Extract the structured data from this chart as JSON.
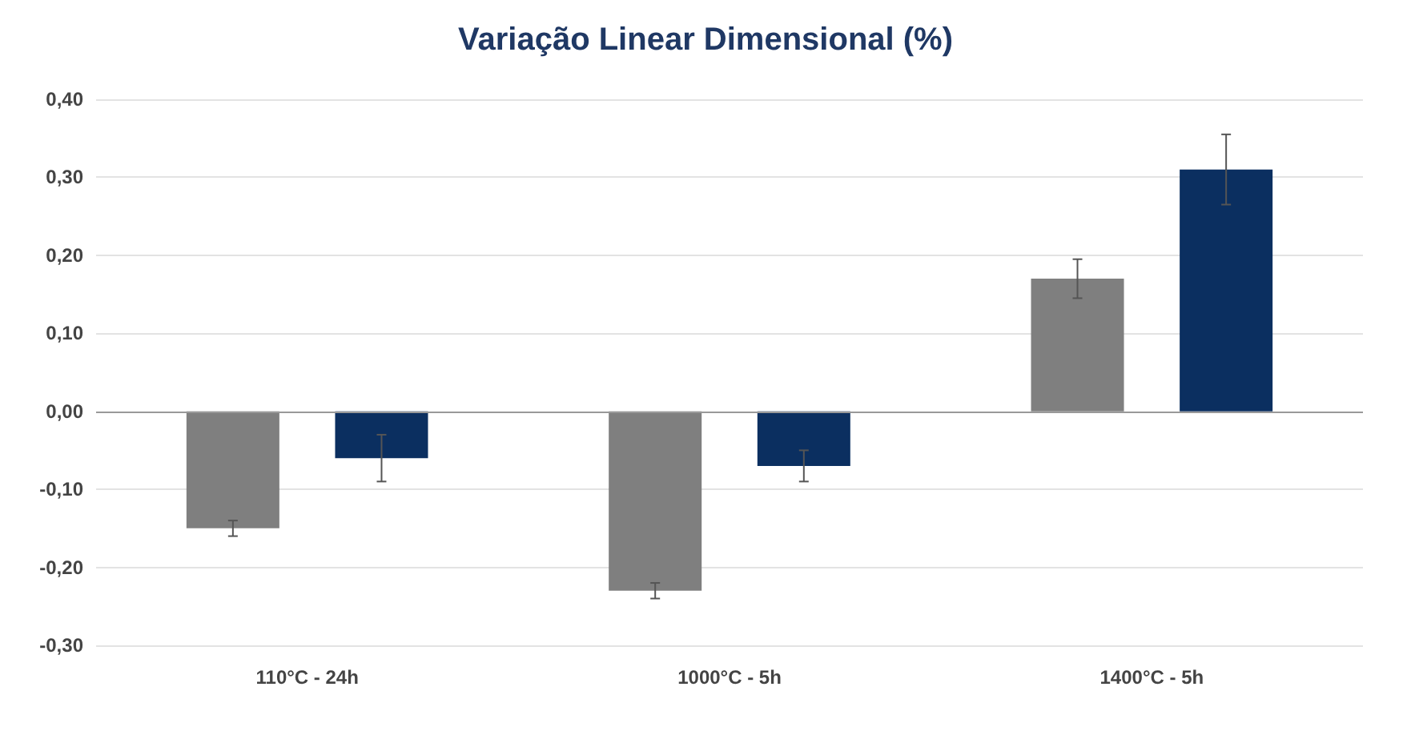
{
  "chart_data": {
    "type": "bar",
    "title": "Variação Linear Dimensional (%)",
    "categories": [
      "110°C - 24h",
      "1000°C - 5h",
      "1400°C - 5h"
    ],
    "series": [
      {
        "color": "#7f7f7f",
        "values": [
          -0.15,
          -0.23,
          0.17
        ],
        "errors": [
          0.01,
          0.01,
          0.025
        ]
      },
      {
        "color": "#0b2f60",
        "values": [
          -0.06,
          -0.07,
          0.31
        ],
        "errors": [
          0.03,
          0.02,
          0.045
        ]
      }
    ],
    "ylim": [
      -0.3,
      0.4
    ],
    "yticks": [
      {
        "value": -0.3,
        "label": "-0,30"
      },
      {
        "value": -0.2,
        "label": "-0,20"
      },
      {
        "value": -0.1,
        "label": "-0,10"
      },
      {
        "value": 0,
        "label": "0,00"
      },
      {
        "value": 0.1,
        "label": "0,10"
      },
      {
        "value": 0.2,
        "label": "0,20"
      },
      {
        "value": 0.3,
        "label": "0,30"
      },
      {
        "value": 0.4,
        "label": "0,40"
      }
    ],
    "grid": "y"
  }
}
